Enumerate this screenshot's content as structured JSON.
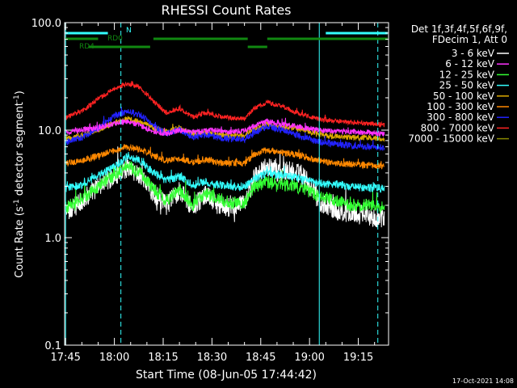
{
  "chart_data": {
    "type": "line",
    "title": "RHESSI Count Rates",
    "xlabel": "Start Time (08-Jun-05 17:44:42)",
    "ylabel_main": "Count Rate (s",
    "ylabel_sup1": "-1",
    "ylabel_mid": " detector segment",
    "ylabel_sup2": "-1",
    "ylabel_end": ")",
    "y_scale": "log",
    "ylim": [
      0.1,
      100
    ],
    "xlim": [
      "17:45",
      "19:24"
    ],
    "x_ticks": [
      "17:45",
      "18:00",
      "18:15",
      "18:30",
      "18:45",
      "19:00",
      "19:15"
    ],
    "y_ticks": [
      "0.1",
      "1.0",
      "10.0",
      "100.0"
    ],
    "legend_header": [
      "Det 1f,3f,4f,5f,6f,9f,",
      "FDecim 1, Att 0"
    ],
    "series": [
      {
        "name": "3 - 6 keV",
        "color": "#ffffff",
        "points": [
          [
            "17:45",
            1.7
          ],
          [
            "17:50",
            2.2
          ],
          [
            "17:55",
            3.0
          ],
          [
            "18:00",
            3.8
          ],
          [
            "18:04",
            4.5
          ],
          [
            "18:08",
            3.8
          ],
          [
            "18:12",
            2.6
          ],
          [
            "18:16",
            2.0
          ],
          [
            "18:20",
            2.8
          ],
          [
            "18:24",
            1.9
          ],
          [
            "18:28",
            2.5
          ],
          [
            "18:32",
            2.0
          ],
          [
            "18:36",
            1.9
          ],
          [
            "18:40",
            2.0
          ],
          [
            "18:43",
            3.6
          ],
          [
            "18:47",
            4.6
          ],
          [
            "18:51",
            4.0
          ],
          [
            "18:55",
            4.3
          ],
          [
            "18:59",
            3.4
          ],
          [
            "19:03",
            2.2
          ],
          [
            "19:08",
            1.8
          ],
          [
            "19:13",
            1.7
          ],
          [
            "19:18",
            1.6
          ],
          [
            "19:23",
            1.5
          ]
        ]
      },
      {
        "name": "6 - 12 keV",
        "color": "#ff33ff",
        "points": [
          [
            "17:45",
            9.5
          ],
          [
            "17:50",
            10.0
          ],
          [
            "17:55",
            10.5
          ],
          [
            "18:00",
            11.5
          ],
          [
            "18:04",
            12.0
          ],
          [
            "18:08",
            11.0
          ],
          [
            "18:12",
            9.8
          ],
          [
            "18:16",
            9.2
          ],
          [
            "18:20",
            10.0
          ],
          [
            "18:25",
            9.6
          ],
          [
            "18:30",
            10.0
          ],
          [
            "18:35",
            9.6
          ],
          [
            "18:40",
            9.8
          ],
          [
            "18:43",
            11.0
          ],
          [
            "18:47",
            12.0
          ],
          [
            "18:51",
            11.5
          ],
          [
            "18:55",
            11.0
          ],
          [
            "18:59",
            10.5
          ],
          [
            "19:03",
            10.0
          ],
          [
            "19:08",
            9.8
          ],
          [
            "19:13",
            9.6
          ],
          [
            "19:18",
            9.5
          ],
          [
            "19:23",
            9.2
          ]
        ]
      },
      {
        "name": "12 - 25 keV",
        "color": "#33ff33",
        "points": [
          [
            "17:45",
            1.9
          ],
          [
            "17:50",
            2.3
          ],
          [
            "17:55",
            3.0
          ],
          [
            "18:00",
            3.8
          ],
          [
            "18:04",
            4.7
          ],
          [
            "18:08",
            4.0
          ],
          [
            "18:12",
            2.8
          ],
          [
            "18:16",
            2.2
          ],
          [
            "18:20",
            2.8
          ],
          [
            "18:24",
            2.0
          ],
          [
            "18:28",
            2.6
          ],
          [
            "18:32",
            2.3
          ],
          [
            "18:36",
            2.1
          ],
          [
            "18:40",
            2.1
          ],
          [
            "18:43",
            3.0
          ],
          [
            "18:47",
            3.3
          ],
          [
            "18:51",
            3.1
          ],
          [
            "18:55",
            3.0
          ],
          [
            "18:59",
            2.8
          ],
          [
            "19:03",
            2.4
          ],
          [
            "19:08",
            2.2
          ],
          [
            "19:13",
            2.0
          ],
          [
            "19:18",
            2.0
          ],
          [
            "19:23",
            1.9
          ]
        ]
      },
      {
        "name": "25 - 50 keV",
        "color": "#33ffff",
        "points": [
          [
            "17:45",
            2.9
          ],
          [
            "17:50",
            3.1
          ],
          [
            "17:55",
            3.8
          ],
          [
            "18:00",
            4.5
          ],
          [
            "18:04",
            5.8
          ],
          [
            "18:08",
            5.2
          ],
          [
            "18:12",
            4.0
          ],
          [
            "18:16",
            3.4
          ],
          [
            "18:20",
            3.7
          ],
          [
            "18:24",
            3.1
          ],
          [
            "18:28",
            3.3
          ],
          [
            "18:32",
            3.1
          ],
          [
            "18:36",
            3.0
          ],
          [
            "18:40",
            3.0
          ],
          [
            "18:43",
            3.5
          ],
          [
            "18:47",
            4.0
          ],
          [
            "18:51",
            3.8
          ],
          [
            "18:55",
            3.7
          ],
          [
            "18:59",
            3.4
          ],
          [
            "19:03",
            3.2
          ],
          [
            "19:08",
            3.1
          ],
          [
            "19:13",
            3.0
          ],
          [
            "19:18",
            2.9
          ],
          [
            "19:23",
            2.9
          ]
        ]
      },
      {
        "name": "50 - 100 keV",
        "color": "#ddaa00",
        "points": [
          [
            "17:45",
            8.3
          ],
          [
            "17:50",
            8.9
          ],
          [
            "17:55",
            10.0
          ],
          [
            "18:00",
            11.8
          ],
          [
            "18:04",
            12.8
          ],
          [
            "18:08",
            12.0
          ],
          [
            "18:12",
            10.5
          ],
          [
            "18:16",
            9.6
          ],
          [
            "18:20",
            10.5
          ],
          [
            "18:24",
            9.2
          ],
          [
            "18:28",
            9.4
          ],
          [
            "18:32",
            9.1
          ],
          [
            "18:36",
            8.8
          ],
          [
            "18:40",
            8.9
          ],
          [
            "18:43",
            10.2
          ],
          [
            "18:47",
            11.2
          ],
          [
            "18:51",
            10.8
          ],
          [
            "18:55",
            10.5
          ],
          [
            "18:59",
            9.9
          ],
          [
            "19:03",
            9.1
          ],
          [
            "19:08",
            8.7
          ],
          [
            "19:13",
            8.6
          ],
          [
            "19:18",
            8.5
          ],
          [
            "19:23",
            8.4
          ]
        ]
      },
      {
        "name": "100 - 300 keV",
        "color": "#ff8800",
        "points": [
          [
            "17:45",
            4.9
          ],
          [
            "17:50",
            5.2
          ],
          [
            "17:55",
            5.8
          ],
          [
            "18:00",
            6.4
          ],
          [
            "18:04",
            7.0
          ],
          [
            "18:08",
            6.6
          ],
          [
            "18:12",
            5.8
          ],
          [
            "18:16",
            5.2
          ],
          [
            "18:20",
            5.5
          ],
          [
            "18:24",
            5.0
          ],
          [
            "18:28",
            5.3
          ],
          [
            "18:32",
            5.0
          ],
          [
            "18:36",
            4.9
          ],
          [
            "18:40",
            4.9
          ],
          [
            "18:43",
            5.9
          ],
          [
            "18:47",
            6.5
          ],
          [
            "18:51",
            6.2
          ],
          [
            "18:55",
            6.0
          ],
          [
            "18:59",
            5.6
          ],
          [
            "19:03",
            5.2
          ],
          [
            "19:08",
            4.9
          ],
          [
            "19:13",
            4.8
          ],
          [
            "19:18",
            4.7
          ],
          [
            "19:23",
            4.6
          ]
        ]
      },
      {
        "name": "300 - 800 keV",
        "color": "#2222ff",
        "points": [
          [
            "17:45",
            7.7
          ],
          [
            "17:50",
            8.6
          ],
          [
            "17:55",
            10.5
          ],
          [
            "18:00",
            13.5
          ],
          [
            "18:04",
            15.0
          ],
          [
            "18:08",
            13.8
          ],
          [
            "18:12",
            11.0
          ],
          [
            "18:16",
            9.2
          ],
          [
            "18:20",
            10.2
          ],
          [
            "18:24",
            8.6
          ],
          [
            "18:28",
            9.0
          ],
          [
            "18:32",
            8.5
          ],
          [
            "18:36",
            8.3
          ],
          [
            "18:40",
            8.2
          ],
          [
            "18:43",
            9.6
          ],
          [
            "18:47",
            10.8
          ],
          [
            "18:51",
            10.2
          ],
          [
            "18:55",
            9.2
          ],
          [
            "18:59",
            8.5
          ],
          [
            "19:03",
            7.8
          ],
          [
            "19:08",
            7.4
          ],
          [
            "19:13",
            7.2
          ],
          [
            "19:18",
            7.0
          ],
          [
            "19:23",
            6.8
          ]
        ]
      },
      {
        "name": "800 - 7000 keV",
        "color": "#ff2222",
        "points": [
          [
            "17:45",
            13.0
          ],
          [
            "17:50",
            15.0
          ],
          [
            "17:55",
            19.5
          ],
          [
            "18:00",
            24.5
          ],
          [
            "18:04",
            27.0
          ],
          [
            "18:08",
            25.0
          ],
          [
            "18:12",
            18.5
          ],
          [
            "18:16",
            14.5
          ],
          [
            "18:20",
            16.0
          ],
          [
            "18:24",
            13.2
          ],
          [
            "18:28",
            14.5
          ],
          [
            "18:32",
            13.5
          ],
          [
            "18:36",
            13.0
          ],
          [
            "18:40",
            12.8
          ],
          [
            "18:43",
            16.0
          ],
          [
            "18:47",
            18.0
          ],
          [
            "18:51",
            17.0
          ],
          [
            "18:55",
            15.0
          ],
          [
            "18:59",
            13.6
          ],
          [
            "19:03",
            12.6
          ],
          [
            "19:08",
            12.2
          ],
          [
            "19:13",
            11.8
          ],
          [
            "19:18",
            11.5
          ],
          [
            "19:23",
            11.2
          ]
        ]
      },
      {
        "name": "7000 - 15000 keV",
        "color": "#888800",
        "points": []
      }
    ],
    "annotations": [
      {
        "label": "N",
        "color": "#33ffff",
        "segments": [
          [
            "17:45",
            "17:58"
          ],
          [
            "19:05",
            "19:24"
          ]
        ]
      },
      {
        "label": "RD0",
        "color": "#118811",
        "segments": [
          [
            "17:45",
            "17:55"
          ],
          [
            "18:12",
            "18:41"
          ],
          [
            "18:47",
            "19:24"
          ]
        ]
      },
      {
        "label": "RD4",
        "color": "#118811",
        "segments": [
          [
            "17:52",
            "18:11"
          ],
          [
            "18:41",
            "18:47"
          ]
        ]
      }
    ],
    "vlines": [
      {
        "time": "17:45",
        "style": "solid"
      },
      {
        "time": "18:02",
        "style": "dashed"
      },
      {
        "time": "19:03",
        "style": "solid"
      },
      {
        "time": "19:21",
        "style": "dashed"
      }
    ],
    "grid": false,
    "legend_position": "right"
  },
  "footer": {
    "timestamp": "17-Oct-2021 14:08"
  }
}
